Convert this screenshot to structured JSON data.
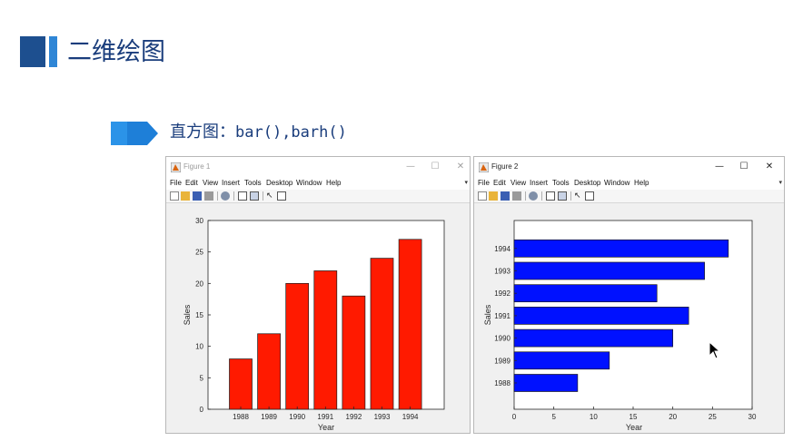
{
  "slide": {
    "title": "二维绘图",
    "subtitle_prefix": "直方图：",
    "subtitle_code": "bar(),barh()"
  },
  "icons": [
    "slide-marker",
    "chevron-arrow",
    "figure-app-icon",
    "minimize-icon",
    "maximize-icon",
    "close-icon",
    "new-figure-icon",
    "open-icon",
    "save-icon",
    "print-icon",
    "zoom-icon",
    "link-icon",
    "insert-colorbar-icon",
    "pointer-icon",
    "property-editor-icon",
    "mouse-cursor-icon"
  ],
  "colors": {
    "title": "#1a3d7c",
    "accent": "#2f86d6",
    "bar_red": "#ff1a00",
    "bar_blue": "#0011ff"
  },
  "windows": [
    {
      "title": "Figure 1",
      "menus": [
        "File",
        "Edit",
        "View",
        "Insert",
        "Tools",
        "Desktop",
        "Window",
        "Help"
      ],
      "controls": {
        "minimize": "—",
        "maximize": "☐",
        "close": "✕"
      }
    },
    {
      "title": "Figure 2",
      "menus": [
        "File",
        "Edit",
        "View",
        "Insert",
        "Tools",
        "Desktop",
        "Window",
        "Help"
      ],
      "controls": {
        "minimize": "—",
        "maximize": "☐",
        "close": "✕"
      }
    }
  ],
  "chart_data": [
    {
      "type": "bar",
      "orientation": "vertical",
      "categories": [
        "1988",
        "1989",
        "1990",
        "1991",
        "1992",
        "1993",
        "1994"
      ],
      "values": [
        8,
        12,
        20,
        22,
        18,
        24,
        27
      ],
      "color": "#ff1a00",
      "xlabel": "Year",
      "ylabel": "Sales",
      "ylim": [
        0,
        30
      ],
      "ticks": [
        "0",
        "5",
        "10",
        "15",
        "20",
        "25",
        "30"
      ],
      "grid": false
    },
    {
      "type": "bar",
      "orientation": "horizontal",
      "categories": [
        "1988",
        "1989",
        "1990",
        "1991",
        "1992",
        "1993",
        "1994"
      ],
      "values": [
        8,
        12,
        20,
        22,
        18,
        24,
        27
      ],
      "color": "#0011ff",
      "xlabel": "Year",
      "ylabel": "Sales",
      "xlim": [
        0,
        30
      ],
      "ticks": [
        "0",
        "5",
        "10",
        "15",
        "20",
        "25",
        "30"
      ],
      "grid": false
    }
  ]
}
